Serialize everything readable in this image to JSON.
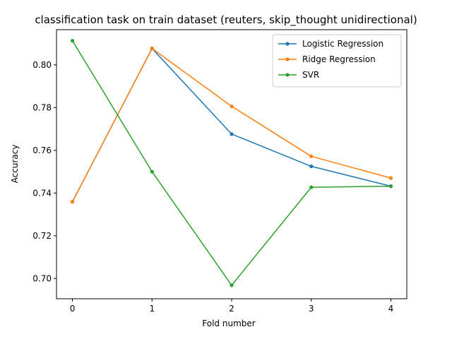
{
  "chart_data": {
    "type": "line",
    "title": "classification task on train dataset (reuters, skip_thought unidirectional)",
    "xlabel": "Fold number",
    "ylabel": "Accuracy",
    "x": [
      0,
      1,
      2,
      3,
      4
    ],
    "x_ticks": [
      "0",
      "1",
      "2",
      "3",
      "4"
    ],
    "y_ticks": [
      "0.70",
      "0.72",
      "0.74",
      "0.76",
      "0.78",
      "0.80"
    ],
    "xlim": [
      -0.2,
      4.2
    ],
    "ylim": [
      0.6905,
      0.8165
    ],
    "legend_position": "upper right",
    "grid": false,
    "series": [
      {
        "name": "Logistic Regression",
        "color": "#1f77b4",
        "values": [
          0.7359,
          0.8077,
          0.7676,
          0.7525,
          0.7432
        ]
      },
      {
        "name": "Ridge Regression",
        "color": "#ff7f0e",
        "values": [
          0.7359,
          0.8077,
          0.7806,
          0.7572,
          0.747
        ]
      },
      {
        "name": "SVR",
        "color": "#2ca02c",
        "values": [
          0.8113,
          0.75,
          0.6968,
          0.7427,
          0.7432
        ]
      }
    ]
  }
}
